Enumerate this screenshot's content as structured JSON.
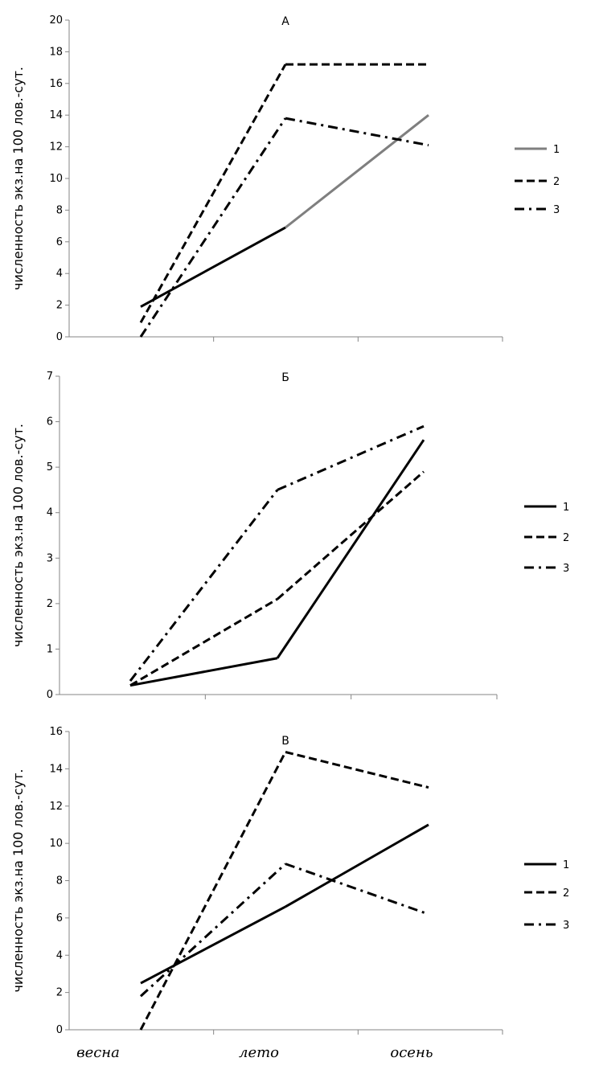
{
  "chart_data": [
    {
      "type": "line",
      "title": "А",
      "ylabel": "численность экз.на 100 лов.-сут.",
      "categories": [
        "весна",
        "лето",
        "осень"
      ],
      "ylim": [
        0,
        20
      ],
      "yticks": [
        0,
        2,
        4,
        6,
        8,
        10,
        12,
        14,
        16,
        18,
        20
      ],
      "series": [
        {
          "name": "1",
          "values": [
            1.9,
            6.9,
            14.0
          ],
          "style": "solid",
          "color": "#000000",
          "color_end": "#7f7f7f"
        },
        {
          "name": "2",
          "values": [
            0.9,
            17.2,
            17.2
          ],
          "style": "dash",
          "color": "#000000"
        },
        {
          "name": "3",
          "values": [
            0.0,
            13.8,
            12.1
          ],
          "style": "dashdot",
          "color": "#000000"
        }
      ],
      "legend": "right"
    },
    {
      "type": "line",
      "title": "Б",
      "ylabel": "численность экз.на 100 лов.-сут.",
      "categories": [
        "весна",
        "лето",
        "осень"
      ],
      "ylim": [
        0,
        7
      ],
      "yticks": [
        0,
        1,
        2,
        3,
        4,
        5,
        6,
        7
      ],
      "series": [
        {
          "name": "1",
          "values": [
            0.2,
            0.8,
            5.6
          ],
          "style": "solid",
          "color": "#000000"
        },
        {
          "name": "2",
          "values": [
            0.2,
            2.1,
            4.9
          ],
          "style": "dash",
          "color": "#000000"
        },
        {
          "name": "3",
          "values": [
            0.3,
            4.5,
            5.9
          ],
          "style": "dashdot",
          "color": "#000000"
        }
      ],
      "legend": "right"
    },
    {
      "type": "line",
      "title": "В",
      "ylabel": "численность экз.на 100 лов.-сут.",
      "categories": [
        "весна",
        "лето",
        "осень"
      ],
      "ylim": [
        0,
        16
      ],
      "yticks": [
        0,
        2,
        4,
        6,
        8,
        10,
        12,
        14,
        16
      ],
      "series": [
        {
          "name": "1",
          "values": [
            2.5,
            6.6,
            11.0
          ],
          "style": "solid",
          "color": "#000000"
        },
        {
          "name": "2",
          "values": [
            0.0,
            14.9,
            13.0
          ],
          "style": "dash",
          "color": "#000000"
        },
        {
          "name": "3",
          "values": [
            1.8,
            8.9,
            6.2
          ],
          "style": "dashdot",
          "color": "#000000"
        }
      ],
      "legend": "right"
    }
  ]
}
